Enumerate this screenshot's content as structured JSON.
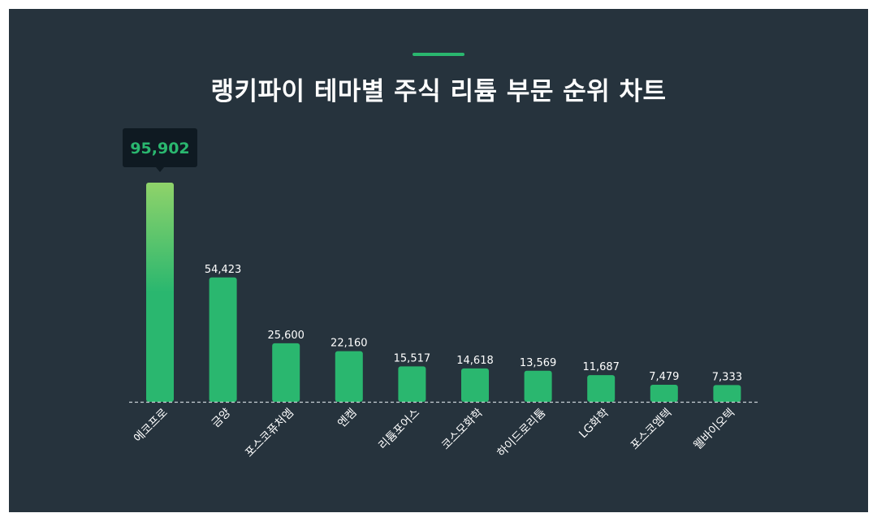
{
  "chart_data": {
    "type": "bar",
    "title": "랭키파이 테마별 주식 리튬 부문 순위 차트",
    "categories": [
      "에코프로",
      "금양",
      "포스코퓨처엠",
      "엔켐",
      "리튬포어스",
      "코스모화학",
      "하이드로리튬",
      "LG화학",
      "포스코엠텍",
      "웰바이오텍"
    ],
    "values": [
      95902,
      54423,
      25600,
      22160,
      15517,
      14618,
      13569,
      11687,
      7479,
      7333
    ],
    "value_labels": [
      "95,902",
      "54,423",
      "25,600",
      "22,160",
      "15,517",
      "14,618",
      "13,569",
      "11,687",
      "7,479",
      "7,333"
    ],
    "highlight_index": 0,
    "ylim": [
      0,
      95902
    ],
    "grid": false,
    "legend": "none",
    "colors": {
      "background": "#26333d",
      "bar": "#2ab76f",
      "bar_highlight_top": "#8fd36a",
      "tooltip_bg": "#0f1a22",
      "tooltip_text": "#2ab76f",
      "baseline": "#c9d1d6"
    }
  }
}
